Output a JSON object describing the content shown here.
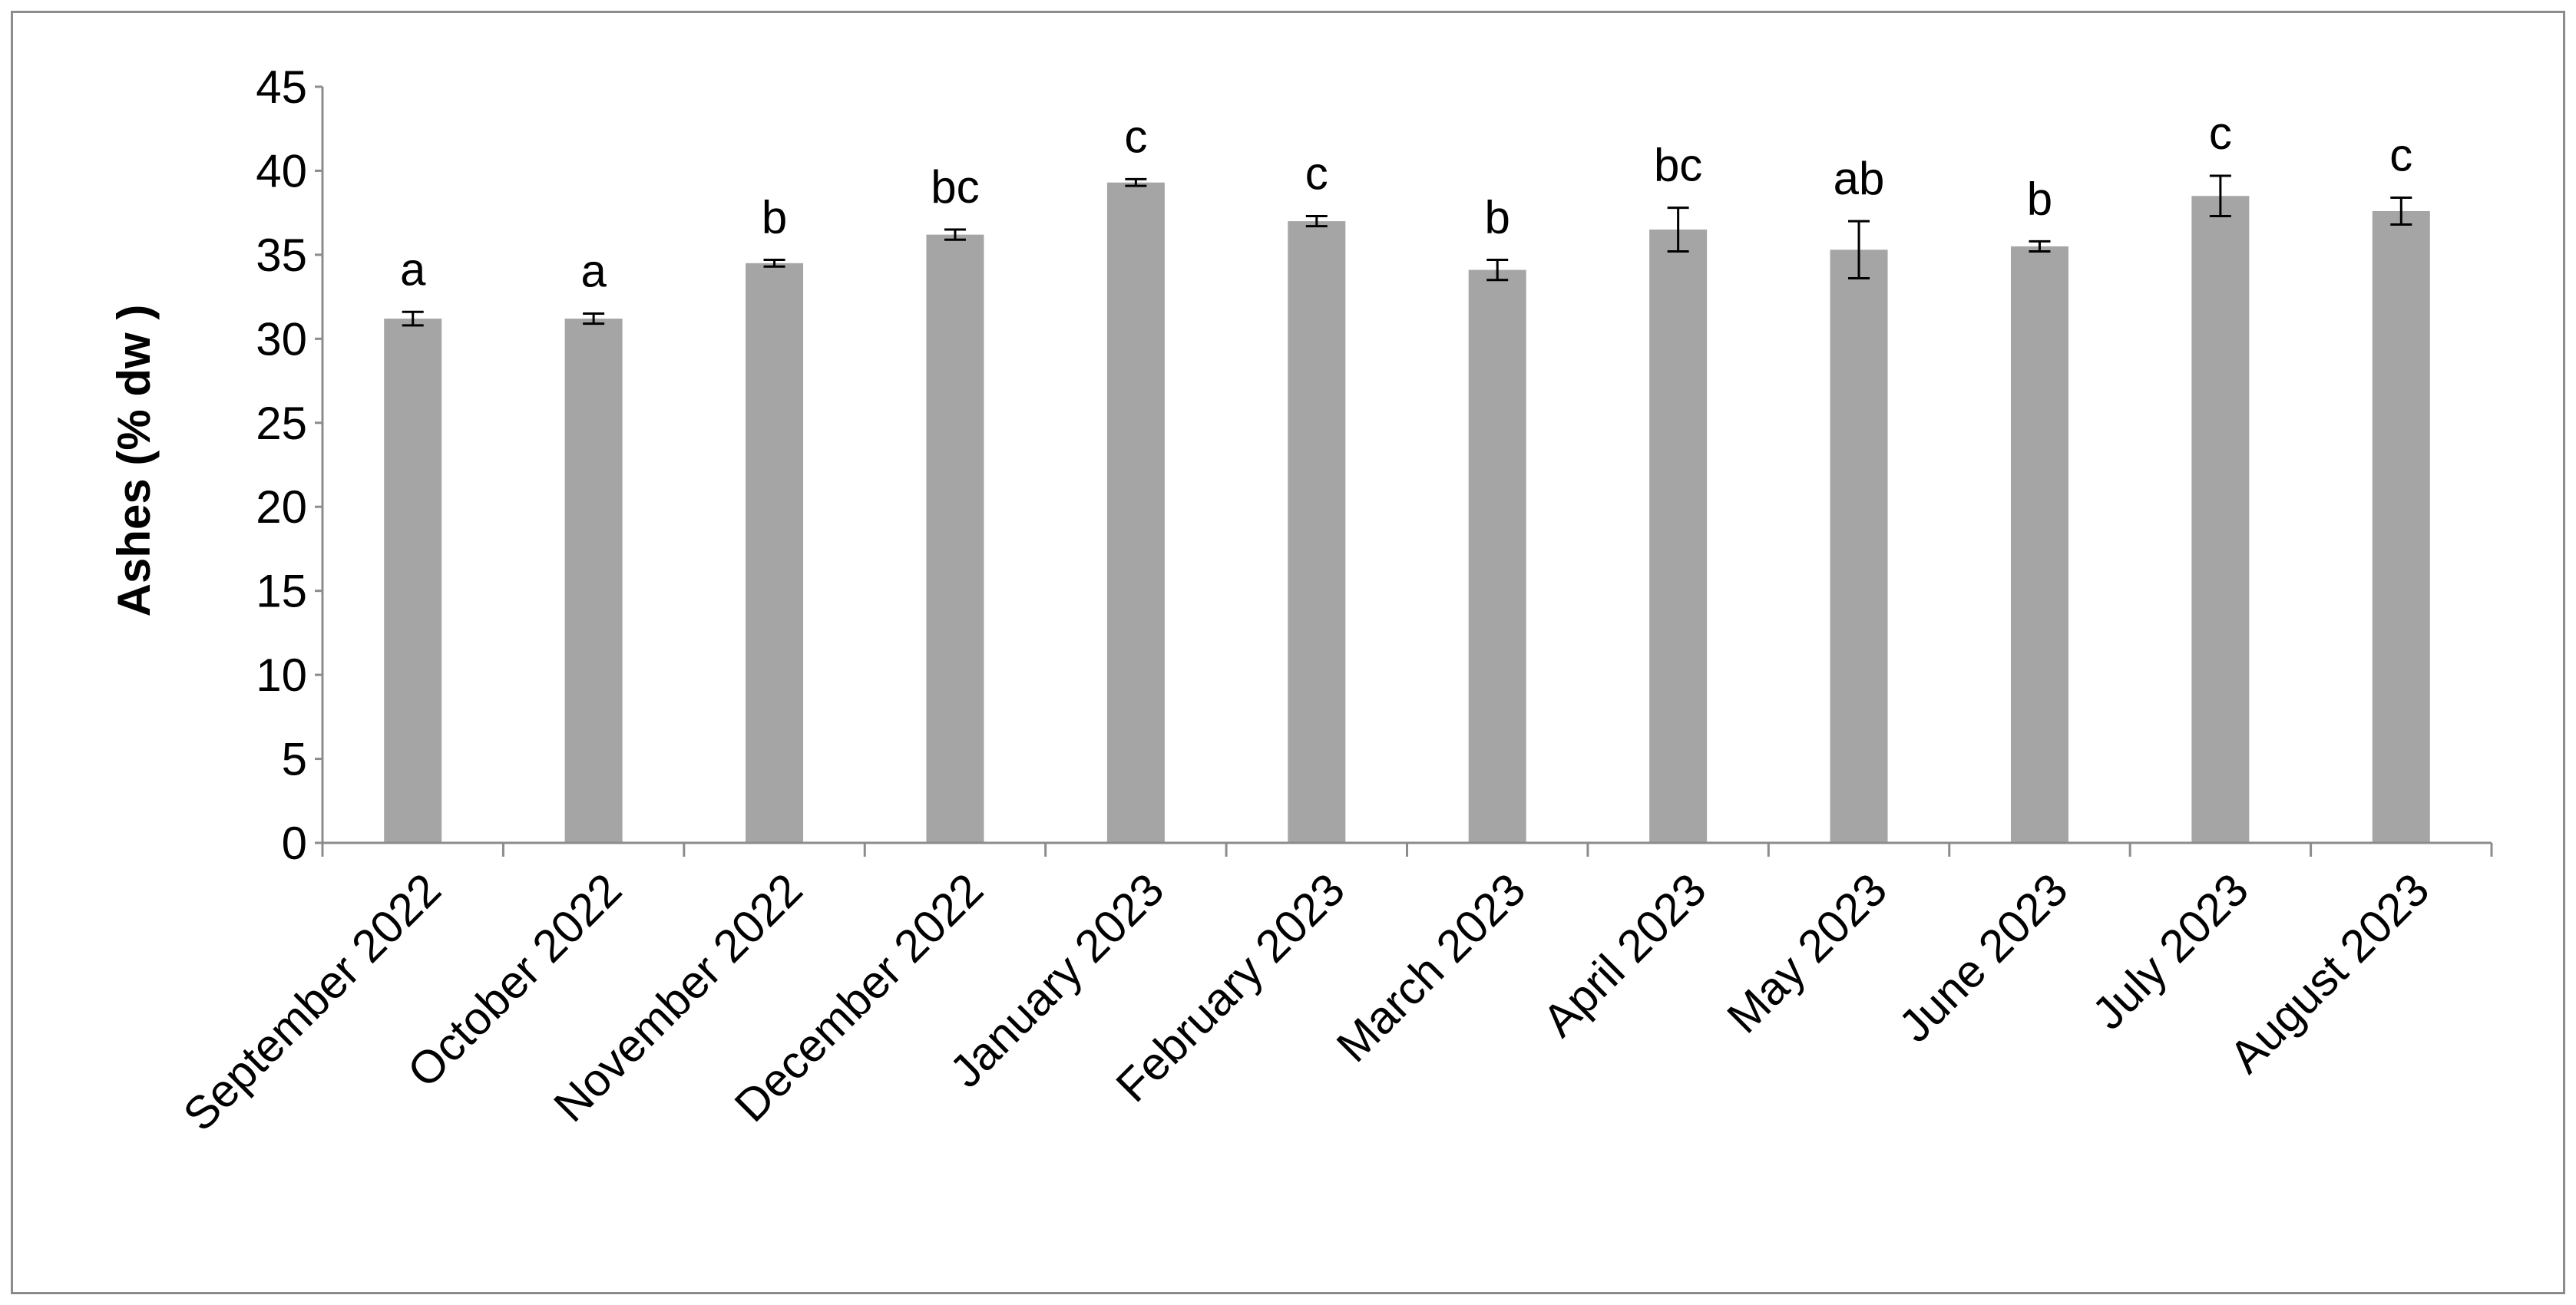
{
  "chart_data": {
    "type": "bar",
    "title": "",
    "xlabel": "",
    "ylabel": "Ashes (% dw )",
    "ylim": [
      0,
      45
    ],
    "yticks": [
      0,
      5,
      10,
      15,
      20,
      25,
      30,
      35,
      40,
      45
    ],
    "grid": false,
    "legend": "none",
    "bar_color": "#a5a5a5",
    "categories": [
      "September 2022",
      "October 2022",
      "November 2022",
      "December 2022",
      "January 2023",
      "February 2023",
      "March 2023",
      "April 2023",
      "May 2023",
      "June 2023",
      "July 2023",
      "August 2023"
    ],
    "series": [
      {
        "values": [
          31.2,
          31.2,
          34.5,
          36.2,
          39.3,
          37.0,
          34.1,
          36.5,
          35.3,
          35.5,
          38.5,
          37.6
        ],
        "errors": [
          0.4,
          0.3,
          0.2,
          0.3,
          0.2,
          0.3,
          0.6,
          1.3,
          1.7,
          0.3,
          1.2,
          0.8
        ],
        "significance": [
          "a",
          "a",
          "b",
          "bc",
          "c",
          "c",
          "b",
          "bc",
          "ab",
          "b",
          "c",
          "c"
        ]
      }
    ]
  }
}
